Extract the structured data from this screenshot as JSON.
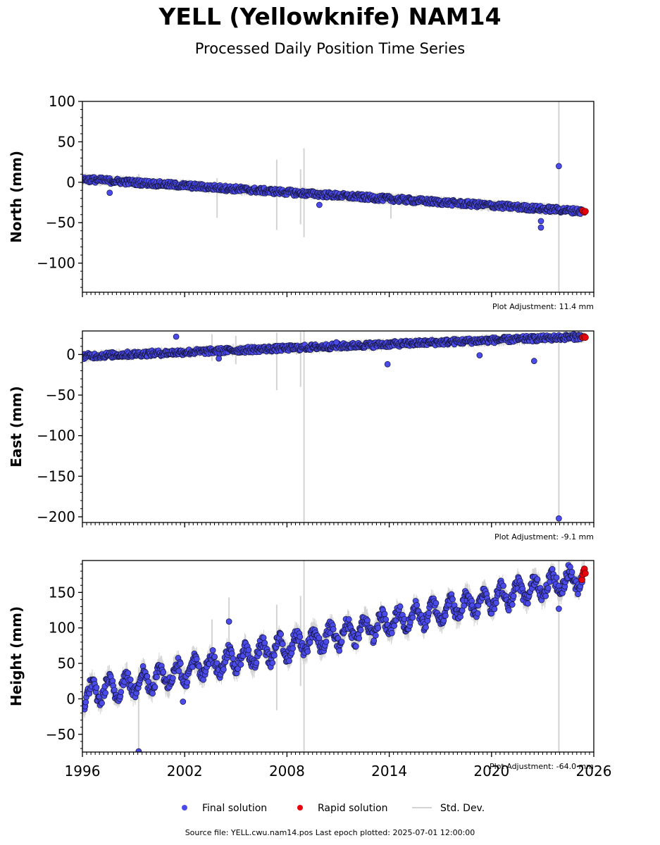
{
  "title": "YELL (Yellowknife) NAM14",
  "subtitle": "Processed Daily Position Time Series",
  "footer": "Source file: YELL.cwu.nam14.pos  Last epoch plotted: 2025-07-01 12:00:00",
  "chart_data": {
    "type": "scatter",
    "x_range": [
      1996,
      2026
    ],
    "x_ticks": [
      1996,
      2002,
      2008,
      2014,
      2020,
      2026
    ],
    "legend": {
      "placement": "bottom-center",
      "entries": [
        {
          "label": "Final solution",
          "color": "#4b4bec"
        },
        {
          "label": "Rapid solution",
          "color": "#e8000b"
        },
        {
          "label": "Std. Dev.",
          "color": "#d3d3d3"
        }
      ]
    },
    "panels": [
      {
        "ylabel": "North (mm)",
        "ylim": [
          -136,
          100
        ],
        "yticks": [
          100,
          50,
          0,
          -50,
          -100
        ],
        "adjustment": "Plot Adjustment: 11.4 mm",
        "final_trend": {
          "start": [
            1996,
            4
          ],
          "end": [
            2025.4,
            -36
          ]
        },
        "rapid": [
          [
            2025.35,
            -35
          ],
          [
            2025.45,
            -37
          ],
          [
            2025.5,
            -36
          ]
        ],
        "outliers": [
          [
            2023.95,
            20
          ],
          [
            1997.6,
            -13
          ],
          [
            2022.9,
            -56
          ],
          [
            2022.9,
            -48
          ],
          [
            2009.9,
            -28
          ]
        ],
        "stddev": [
          [
            1999.3,
            -5,
            10
          ],
          [
            2003.9,
            -44,
            5
          ],
          [
            2007.4,
            -59,
            28
          ],
          [
            2008.8,
            -52,
            16
          ],
          [
            2009.0,
            -68,
            42
          ],
          [
            2014.1,
            -45,
            -18
          ],
          [
            2023.95,
            -136,
            100
          ]
        ]
      },
      {
        "ylabel": "East (mm)",
        "ylim": [
          -207,
          29
        ],
        "yticks": [
          0,
          -50,
          -100,
          -150,
          -200
        ],
        "adjustment": "Plot Adjustment: -9.1 mm",
        "final_trend": {
          "start": [
            1996,
            -2
          ],
          "end": [
            2025.4,
            22
          ]
        },
        "rapid": [
          [
            2025.35,
            21
          ],
          [
            2025.45,
            22
          ],
          [
            2025.5,
            21
          ]
        ],
        "outliers": [
          [
            2023.95,
            -202
          ],
          [
            2019.3,
            -1
          ],
          [
            2013.9,
            -12
          ],
          [
            2022.5,
            -8
          ],
          [
            2010.9,
            15
          ],
          [
            2001.5,
            22
          ],
          [
            2004.0,
            -5
          ]
        ],
        "stddev": [
          [
            2007.4,
            -44,
            27
          ],
          [
            2008.8,
            -40,
            28
          ],
          [
            2009.0,
            -207,
            29
          ],
          [
            2023.95,
            -207,
            29
          ],
          [
            2003.6,
            -8,
            25
          ],
          [
            2005.0,
            -12,
            23
          ]
        ]
      },
      {
        "ylabel": "Height (mm)",
        "ylim": [
          -75,
          195
        ],
        "yticks": [
          150,
          100,
          50,
          0,
          -50
        ],
        "adjustment": "Plot Adjustment: -64.0 mm",
        "final_trend": {
          "start": [
            1996,
            5
          ],
          "end": [
            2025.4,
            172
          ]
        },
        "seasonal_amplitude": 14,
        "rapid": [
          [
            2025.3,
            168
          ],
          [
            2025.35,
            175
          ],
          [
            2025.4,
            180
          ],
          [
            2025.45,
            183
          ],
          [
            2025.5,
            177
          ]
        ],
        "outliers": [
          [
            2004.6,
            109
          ],
          [
            1999.3,
            -74
          ],
          [
            2023.95,
            127
          ],
          [
            2001.9,
            -4
          ]
        ],
        "stddev": [
          [
            1999.3,
            -75,
            10
          ],
          [
            2004.6,
            80,
            143
          ],
          [
            2007.4,
            -16,
            133
          ],
          [
            2008.8,
            18,
            145
          ],
          [
            2009.0,
            -75,
            195
          ],
          [
            2023.95,
            -75,
            195
          ],
          [
            2003.6,
            40,
            112
          ]
        ]
      }
    ]
  }
}
